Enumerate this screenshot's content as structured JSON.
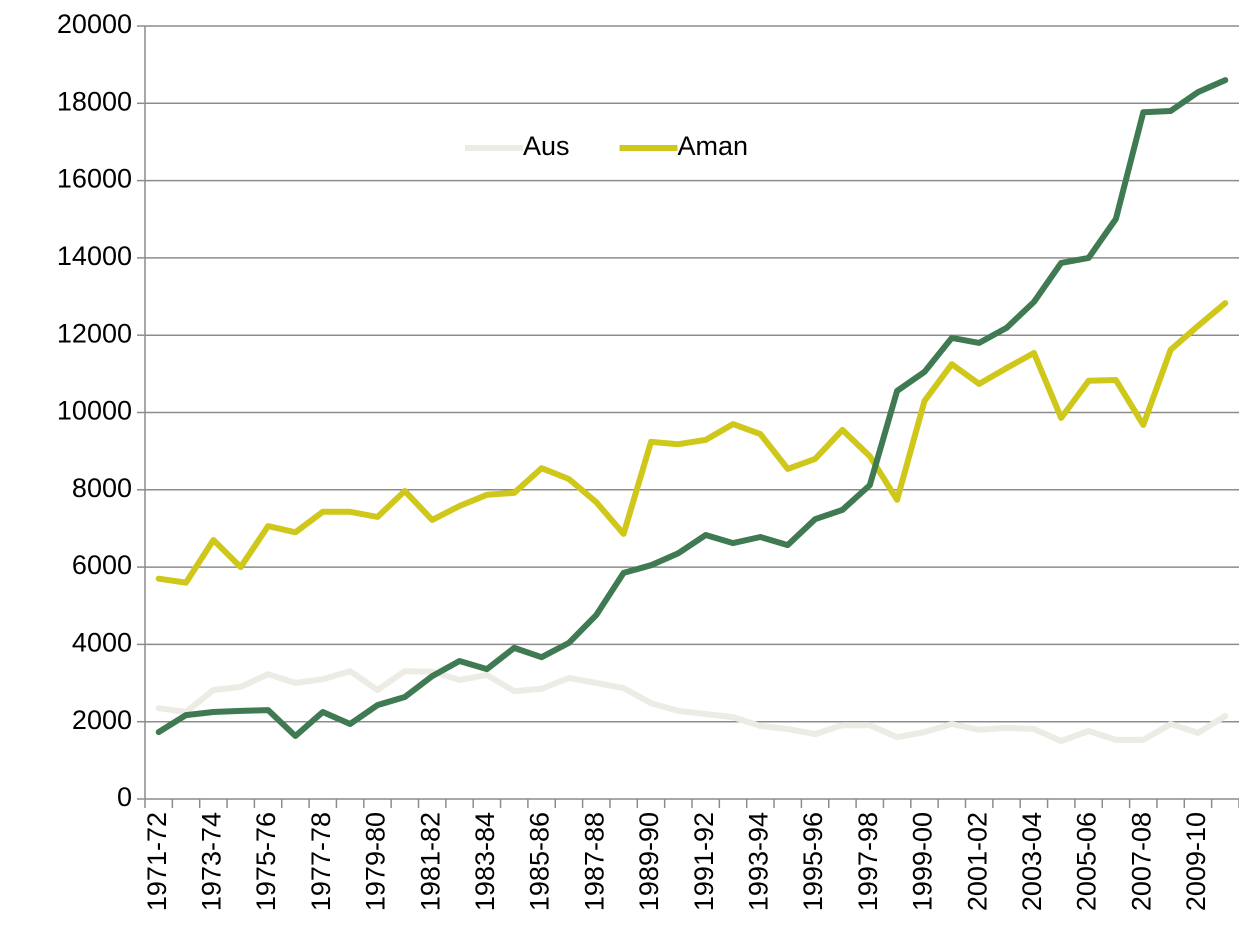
{
  "chart_data": {
    "type": "line",
    "categories": [
      "1971-72",
      null,
      "1973-74",
      null,
      "1975-76",
      null,
      "1977-78",
      null,
      "1979-80",
      null,
      "1981-82",
      null,
      "1983-84",
      null,
      "1985-86",
      null,
      "1987-88",
      null,
      "1989-90",
      null,
      "1991-92",
      null,
      "1993-94",
      null,
      "1995-96",
      null,
      "1997-98",
      null,
      "1999-00",
      null,
      "2001-02",
      null,
      "2003-04",
      null,
      "2005-06",
      null,
      "2007-08",
      null,
      "2009-10",
      null
    ],
    "series": [
      {
        "name": "Aus",
        "color": "#ecece4",
        "values": [
          2350,
          2250,
          2820,
          2900,
          3230,
          3000,
          3100,
          3310,
          2820,
          3310,
          3290,
          3080,
          3210,
          2790,
          2850,
          3130,
          3000,
          2870,
          2480,
          2280,
          2200,
          2120,
          1890,
          1810,
          1680,
          1910,
          1910,
          1600,
          1730,
          1940,
          1790,
          1840,
          1810,
          1500,
          1760,
          1530,
          1530,
          1940,
          1710,
          2150
        ]
      },
      {
        "name": "Aman",
        "color": "#cfc81a",
        "values": [
          5700,
          5600,
          6700,
          6000,
          7060,
          6900,
          7430,
          7430,
          7300,
          7970,
          7220,
          7580,
          7870,
          7920,
          8560,
          8280,
          7680,
          6860,
          9240,
          9180,
          9290,
          9700,
          9440,
          8540,
          8800,
          9550,
          8870,
          7740,
          10300,
          11250,
          10740,
          11150,
          11540,
          9860,
          10820,
          10840,
          9680,
          11620,
          12240,
          12830
        ]
      },
      {
        "color": "#3f7a52",
        "values": [
          1730,
          2170,
          2250,
          2280,
          2300,
          1630,
          2250,
          1940,
          2430,
          2640,
          3180,
          3570,
          3360,
          3910,
          3670,
          4040,
          4760,
          5850,
          6050,
          6360,
          6830,
          6620,
          6780,
          6570,
          7240,
          7480,
          8120,
          10560,
          11050,
          11930,
          11800,
          12190,
          12860,
          13870,
          14000,
          15010,
          17770,
          17800,
          18290,
          18600
        ]
      }
    ],
    "ylim": [
      0,
      20000
    ],
    "yticks": [
      0,
      2000,
      4000,
      6000,
      8000,
      10000,
      12000,
      14000,
      16000,
      18000,
      20000
    ],
    "grid": true
  }
}
